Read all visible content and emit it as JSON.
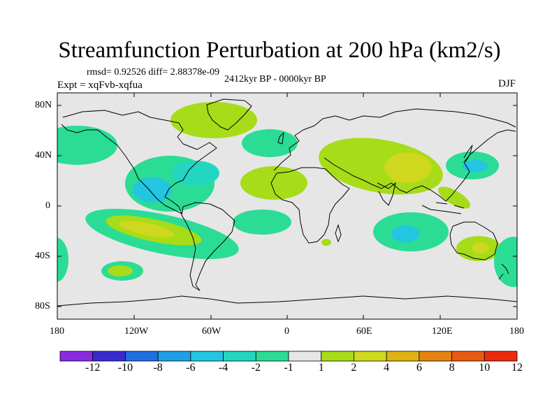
{
  "title": "Streamfunction Perturbation at 200 hPa (km2/s)",
  "stats": "rmsd= 0.92526 diff= 2.88378e-09",
  "experiment": "Expt = xqFvb-xqfua",
  "period": "2412kyr BP - 0000kyr BP",
  "season": "DJF",
  "colors": {
    "ocean_background": "#e6e6e6",
    "coastline": "#000000"
  },
  "axes": {
    "lat_labels": [
      "80N",
      "40N",
      "0",
      "40S",
      "80S"
    ],
    "lon_labels": [
      "180",
      "120W",
      "60W",
      "0",
      "60E",
      "120E",
      "180"
    ]
  },
  "colorbar": {
    "labels": [
      "-12",
      "-10",
      "-8",
      "-6",
      "-4",
      "-2",
      "-1",
      "1",
      "2",
      "4",
      "6",
      "8",
      "10",
      "12"
    ],
    "colors": [
      "#8a2be2",
      "#3a2bd1",
      "#1f6fe0",
      "#1e9fe6",
      "#22c6e0",
      "#22d6c2",
      "#2bdc95",
      "#e6e6e6",
      "#a6dc18",
      "#cfd81e",
      "#e0b212",
      "#e58410",
      "#e85a10",
      "#ec2a0e"
    ]
  },
  "chart_data": {
    "type": "heatmap",
    "title": "Streamfunction Perturbation at 200 hPa (km2/s)",
    "variable": "Streamfunction perturbation",
    "units": "km2/s",
    "level": "200 hPa",
    "lon_range": [
      -180,
      180
    ],
    "lat_range": [
      -90,
      90
    ],
    "levels": [
      -12,
      -10,
      -8,
      -6,
      -4,
      -2,
      -1,
      1,
      2,
      4,
      6,
      8,
      10,
      12
    ],
    "features": [
      {
        "name": "Greenland/Canada positive",
        "lon": -60,
        "lat": 68,
        "level": 2
      },
      {
        "name": "North Pacific negative",
        "lon": -165,
        "lat": 48,
        "level": -2
      },
      {
        "name": "North Atlantic negative",
        "lon": -10,
        "lat": 48,
        "level": -2
      },
      {
        "name": "Gulf of Mexico negative",
        "lon": -95,
        "lat": 22,
        "level": -4
      },
      {
        "name": "Caribbean negative",
        "lon": -70,
        "lat": 32,
        "level": -4
      },
      {
        "name": "Eastern tropical Pacific positive",
        "lon": -110,
        "lat": -20,
        "level": 4
      },
      {
        "name": "South Pacific positive",
        "lon": -130,
        "lat": -50,
        "level": 2
      },
      {
        "name": "West Africa positive",
        "lon": -15,
        "lat": 20,
        "level": 2
      },
      {
        "name": "South Atlantic negative",
        "lon": -25,
        "lat": -10,
        "level": -2
      },
      {
        "name": "Asia positive",
        "lon": 90,
        "lat": 35,
        "level": 4
      },
      {
        "name": "Japan/NW Pacific negative",
        "lon": 150,
        "lat": 34,
        "level": -4
      },
      {
        "name": "Indian Ocean negative",
        "lon": 85,
        "lat": -20,
        "level": -4
      },
      {
        "name": "Australia positive",
        "lon": 145,
        "lat": -35,
        "level": 4
      },
      {
        "name": "Southern Africa positive",
        "lon": 30,
        "lat": -30,
        "level": 2
      }
    ]
  }
}
